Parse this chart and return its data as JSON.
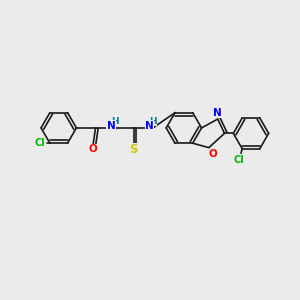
{
  "background_color": "#ebebeb",
  "bond_color": "#1a1a1a",
  "atom_colors": {
    "Cl": "#00bb00",
    "O": "#ff0000",
    "N": "#0000ff",
    "S": "#cccc00",
    "H": "#008080",
    "C": "#1a1a1a"
  },
  "font_size": 7.0,
  "fig_width": 3.0,
  "fig_height": 3.0,
  "dpi": 100
}
